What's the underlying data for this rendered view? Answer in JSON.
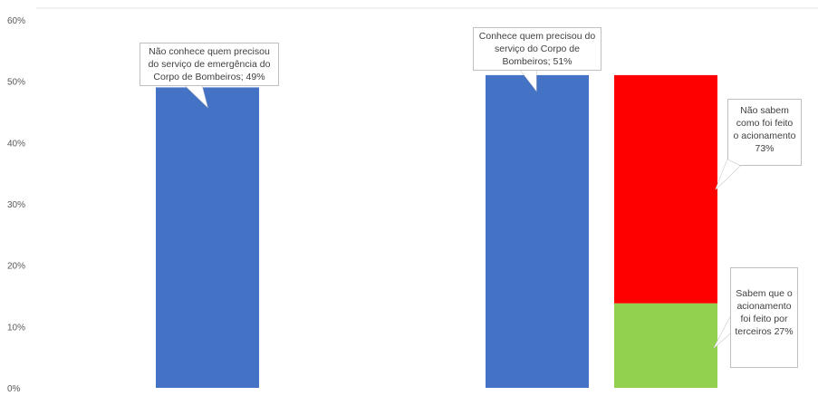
{
  "chart_data": {
    "type": "bar",
    "ylim": [
      0,
      60
    ],
    "y_ticks": [
      "0%",
      "10%",
      "20%",
      "30%",
      "40%",
      "50%",
      "60%"
    ],
    "grid": false,
    "bars": [
      {
        "value": 49,
        "color": "#4472C4"
      },
      {
        "value": 51,
        "color": "#4472C4"
      },
      {
        "value": 37.23,
        "base": 13.77,
        "color": "#FF0000"
      },
      {
        "value": 13.77,
        "base": 0,
        "color": "#92D050"
      }
    ],
    "annotations": [
      {
        "lines": [
          "Não conhece quem precisou",
          "do serviço de emergência do",
          "Corpo de Bombeiros; 49%"
        ]
      },
      {
        "lines": [
          "Conhece quem precisou do",
          "serviço do Corpo de",
          "Bombeiros; 51%"
        ]
      },
      {
        "lines": [
          "Não sabem",
          "como foi feito",
          "o acionamento",
          "73%"
        ]
      },
      {
        "lines": [
          "Sabem que o",
          "acionamento",
          "foi feito por",
          "terceiros 27%"
        ]
      }
    ]
  }
}
